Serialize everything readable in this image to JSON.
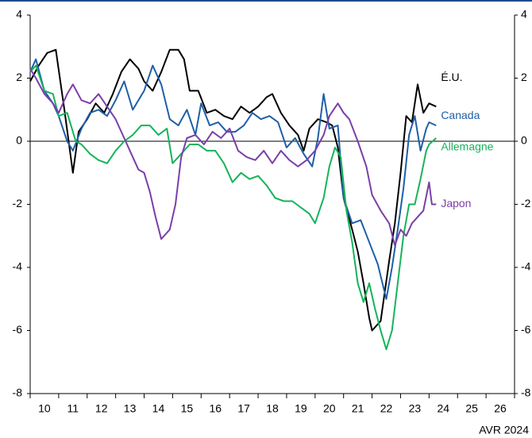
{
  "chart_data": {
    "type": "line",
    "xlim": [
      10,
      27
    ],
    "xticks": [
      10,
      11,
      12,
      13,
      14,
      15,
      16,
      17,
      18,
      19,
      20,
      21,
      22,
      23,
      24,
      25,
      26,
      27
    ],
    "xtick_labels": [
      {
        "value": 10.5,
        "label": "10"
      },
      {
        "value": 11.5,
        "label": "11"
      },
      {
        "value": 12.5,
        "label": "12"
      },
      {
        "value": 13.5,
        "label": "13"
      },
      {
        "value": 14.5,
        "label": "14"
      },
      {
        "value": 15.5,
        "label": "15"
      },
      {
        "value": 16.5,
        "label": "16"
      },
      {
        "value": 17.5,
        "label": "17"
      },
      {
        "value": 18.5,
        "label": "18"
      },
      {
        "value": 19.5,
        "label": "19"
      },
      {
        "value": 20.5,
        "label": "20"
      },
      {
        "value": 21.5,
        "label": "21"
      },
      {
        "value": 22.5,
        "label": "22"
      },
      {
        "value": 23.5,
        "label": "23"
      },
      {
        "value": 24.5,
        "label": "24"
      },
      {
        "value": 25.5,
        "label": "25"
      },
      {
        "value": 26.5,
        "label": "26"
      }
    ],
    "ylim": [
      -8,
      4
    ],
    "yticks": [
      -8,
      -6,
      -4,
      -2,
      0,
      2,
      4
    ],
    "note": "AVR 2024",
    "series": [
      {
        "name": "É.U.",
        "color": "#000000",
        "x": [
          10.0,
          10.3,
          10.6,
          10.9,
          11.2,
          11.5,
          11.7,
          12.0,
          12.3,
          12.6,
          12.9,
          13.2,
          13.5,
          13.8,
          14.0,
          14.3,
          14.6,
          14.9,
          15.2,
          15.4,
          15.6,
          15.9,
          16.2,
          16.5,
          16.8,
          17.1,
          17.4,
          17.7,
          18.0,
          18.3,
          18.5,
          18.8,
          19.1,
          19.4,
          19.6,
          19.8,
          20.1,
          20.4,
          20.6,
          20.8,
          21.0,
          21.3,
          21.5,
          21.7,
          21.9,
          22.0,
          22.3,
          22.6,
          22.8,
          23.0,
          23.2,
          23.4,
          23.6,
          23.8,
          24.0,
          24.25
        ],
        "values": [
          1.9,
          2.4,
          2.8,
          2.9,
          1.0,
          -1.0,
          0.3,
          0.7,
          1.2,
          0.9,
          1.5,
          2.2,
          2.6,
          2.3,
          1.9,
          1.6,
          2.2,
          2.9,
          2.9,
          2.6,
          1.6,
          1.6,
          0.9,
          1.0,
          0.8,
          0.7,
          1.1,
          0.9,
          1.1,
          1.4,
          1.5,
          0.9,
          0.5,
          0.2,
          -0.3,
          0.4,
          0.7,
          0.6,
          0.5,
          -0.2,
          -1.8,
          -2.8,
          -3.5,
          -4.5,
          -5.6,
          -6.0,
          -5.7,
          -3.8,
          -2.6,
          -1.0,
          0.8,
          0.6,
          1.8,
          0.9,
          1.2,
          1.1
        ]
      },
      {
        "name": "Canada",
        "color": "#1f5fa8",
        "x": [
          10.0,
          10.2,
          10.5,
          10.8,
          11.0,
          11.3,
          11.5,
          11.8,
          12.1,
          12.4,
          12.7,
          13.0,
          13.3,
          13.6,
          14.0,
          14.3,
          14.6,
          14.9,
          15.2,
          15.5,
          15.8,
          16.0,
          16.3,
          16.6,
          16.9,
          17.2,
          17.5,
          17.8,
          18.1,
          18.4,
          18.7,
          19.0,
          19.3,
          19.6,
          19.9,
          20.1,
          20.3,
          20.5,
          20.8,
          21.0,
          21.3,
          21.6,
          21.9,
          22.2,
          22.5,
          22.7,
          22.9,
          23.1,
          23.3,
          23.5,
          23.7,
          23.9,
          24.0,
          24.25
        ],
        "values": [
          2.2,
          2.6,
          1.6,
          1.2,
          0.8,
          0.0,
          -0.3,
          0.4,
          0.9,
          1.0,
          0.8,
          1.3,
          1.9,
          1.0,
          1.6,
          2.4,
          1.8,
          0.7,
          0.5,
          1.0,
          0.2,
          1.2,
          0.5,
          0.6,
          0.3,
          0.3,
          0.5,
          0.9,
          0.7,
          0.8,
          0.6,
          -0.2,
          0.1,
          -0.4,
          -0.8,
          0.1,
          1.5,
          0.4,
          0.5,
          -1.8,
          -2.6,
          -2.5,
          -3.2,
          -3.9,
          -5.0,
          -4.0,
          -2.8,
          -1.5,
          0.2,
          0.8,
          -0.3,
          0.4,
          0.6,
          0.5
        ]
      },
      {
        "name": "Allemagne",
        "color": "#16b35a",
        "x": [
          10.0,
          10.2,
          10.5,
          10.8,
          11.0,
          11.3,
          11.6,
          11.8,
          12.1,
          12.4,
          12.7,
          13.0,
          13.3,
          13.6,
          13.9,
          14.2,
          14.5,
          14.8,
          15.0,
          15.3,
          15.6,
          15.9,
          16.2,
          16.5,
          16.8,
          17.1,
          17.4,
          17.7,
          18.0,
          18.3,
          18.6,
          18.9,
          19.2,
          19.5,
          19.8,
          20.0,
          20.3,
          20.5,
          20.7,
          20.9,
          21.1,
          21.3,
          21.5,
          21.7,
          21.9,
          22.1,
          22.3,
          22.5,
          22.7,
          22.9,
          23.1,
          23.3,
          23.5,
          23.7,
          23.9,
          24.0,
          24.25
        ],
        "values": [
          2.2,
          2.4,
          1.6,
          1.5,
          0.8,
          0.9,
          0.0,
          -0.1,
          -0.4,
          -0.6,
          -0.7,
          -0.3,
          0.0,
          0.2,
          0.5,
          0.5,
          0.2,
          0.4,
          -0.7,
          -0.4,
          -0.1,
          -0.1,
          -0.3,
          -0.3,
          -0.7,
          -1.3,
          -1.0,
          -1.2,
          -1.1,
          -1.4,
          -1.8,
          -1.9,
          -1.9,
          -2.1,
          -2.3,
          -2.6,
          -1.8,
          -0.8,
          -0.2,
          -0.5,
          -2.2,
          -3.2,
          -4.5,
          -5.1,
          -4.5,
          -5.3,
          -6.0,
          -6.6,
          -6.0,
          -4.5,
          -3.0,
          -2.0,
          -2.0,
          -1.2,
          -0.3,
          -0.1,
          0.1
        ]
      },
      {
        "name": "Japon",
        "color": "#7a3fa8",
        "x": [
          10.0,
          10.2,
          10.5,
          10.8,
          11.0,
          11.3,
          11.5,
          11.8,
          12.1,
          12.4,
          12.7,
          13.0,
          13.2,
          13.5,
          13.8,
          14.0,
          14.2,
          14.4,
          14.6,
          14.9,
          15.1,
          15.3,
          15.5,
          15.8,
          16.1,
          16.4,
          16.7,
          17.0,
          17.3,
          17.6,
          17.9,
          18.2,
          18.5,
          18.8,
          19.1,
          19.4,
          19.7,
          20.0,
          20.3,
          20.5,
          20.8,
          21.0,
          21.2,
          21.5,
          21.8,
          22.0,
          22.3,
          22.6,
          22.8,
          23.0,
          23.2,
          23.4,
          23.6,
          23.8,
          24.0,
          24.1,
          24.25
        ],
        "values": [
          2.3,
          2.0,
          1.5,
          1.2,
          0.9,
          1.5,
          1.8,
          1.3,
          1.2,
          1.5,
          1.1,
          0.7,
          0.3,
          -0.3,
          -0.9,
          -1.0,
          -1.6,
          -2.4,
          -3.1,
          -2.8,
          -2.0,
          -0.5,
          0.1,
          0.2,
          -0.1,
          0.3,
          0.1,
          0.4,
          -0.3,
          -0.5,
          -0.6,
          -0.3,
          -0.7,
          -0.3,
          -0.6,
          -0.8,
          -0.6,
          -0.3,
          0.2,
          0.8,
          1.2,
          0.9,
          0.7,
          0.0,
          -0.8,
          -1.7,
          -2.2,
          -2.6,
          -3.3,
          -2.8,
          -3.0,
          -2.6,
          -2.4,
          -2.2,
          -1.3,
          -2.0,
          -2.0
        ]
      }
    ]
  }
}
